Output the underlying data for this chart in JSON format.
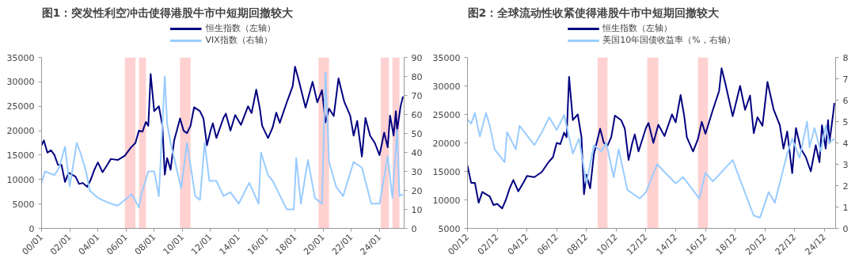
{
  "chart_data": [
    {
      "type": "line",
      "title": "图1：突发性利空冲击使得港股牛市中短期回撤较大",
      "legend": "top",
      "grid": false,
      "xlim": [
        "2000-01-01",
        "2025-10-01"
      ],
      "xticks": [
        {
          "value": "2000-01-01",
          "label": "00/01"
        },
        {
          "value": "2002-01-01",
          "label": "02/01"
        },
        {
          "value": "2004-01-01",
          "label": "04/01"
        },
        {
          "value": "2006-01-01",
          "label": "06/01"
        },
        {
          "value": "2008-01-01",
          "label": "08/01"
        },
        {
          "value": "2010-01-01",
          "label": "10/01"
        },
        {
          "value": "2012-01-01",
          "label": "12/01"
        },
        {
          "value": "2014-01-01",
          "label": "14/01"
        },
        {
          "value": "2016-01-01",
          "label": "16/01"
        },
        {
          "value": "2018-01-01",
          "label": "18/01"
        },
        {
          "value": "2020-01-01",
          "label": "20/01"
        },
        {
          "value": "2022-01-01",
          "label": "22/01"
        },
        {
          "value": "2024-01-01",
          "label": "24/01"
        }
      ],
      "ylim": [
        0,
        35000
      ],
      "yticks": [
        0,
        5000,
        10000,
        15000,
        20000,
        25000,
        30000,
        35000
      ],
      "y2lim": [
        0,
        90
      ],
      "y2ticks": [
        0,
        10,
        20,
        30,
        40,
        50,
        60,
        70,
        80,
        90
      ],
      "series": [
        {
          "name": "恒生指数（左轴）",
          "color": "#000080",
          "x": [
            "2000-01",
            "2000-03",
            "2000-06",
            "2000-09",
            "2000-12",
            "2001-03",
            "2001-06",
            "2001-09",
            "2001-12",
            "2002-03",
            "2002-06",
            "2002-09",
            "2002-12",
            "2003-04",
            "2003-07",
            "2003-10",
            "2004-01",
            "2004-05",
            "2004-09",
            "2004-12",
            "2005-06",
            "2005-12",
            "2006-05",
            "2006-09",
            "2006-12",
            "2007-03",
            "2007-06",
            "2007-08",
            "2007-10",
            "2008-01",
            "2008-05",
            "2008-08",
            "2008-10",
            "2008-12",
            "2009-03",
            "2009-06",
            "2009-11",
            "2010-02",
            "2010-05",
            "2010-08",
            "2010-11",
            "2011-04",
            "2011-07",
            "2011-10",
            "2012-01",
            "2012-03",
            "2012-06",
            "2012-12",
            "2013-02",
            "2013-06",
            "2013-10",
            "2014-03",
            "2014-09",
            "2014-12",
            "2015-04",
            "2015-07",
            "2015-09",
            "2016-02",
            "2016-06",
            "2016-09",
            "2016-12",
            "2017-06",
            "2017-11",
            "2018-01",
            "2018-04",
            "2018-10",
            "2019-04",
            "2019-08",
            "2019-12",
            "2020-03",
            "2020-06",
            "2020-10",
            "2021-02",
            "2021-07",
            "2021-12",
            "2022-03",
            "2022-06",
            "2022-10",
            "2023-01",
            "2023-05",
            "2023-09",
            "2024-01",
            "2024-05",
            "2024-08",
            "2024-10",
            "2025-01",
            "2025-03",
            "2025-04",
            "2025-07",
            "2025-09"
          ],
          "values": [
            17000,
            18000,
            15500,
            16000,
            15000,
            13000,
            13000,
            9500,
            11400,
            11000,
            10600,
            9100,
            9300,
            8500,
            10000,
            12000,
            13500,
            11500,
            13000,
            14200,
            14000,
            14900,
            16500,
            17500,
            20000,
            19800,
            21800,
            21000,
            31600,
            24000,
            25000,
            21000,
            11000,
            14400,
            12000,
            18000,
            22500,
            20000,
            19500,
            21000,
            24800,
            24000,
            22500,
            17000,
            20000,
            21500,
            18500,
            22600,
            23500,
            20000,
            23200,
            21200,
            25000,
            23600,
            28400,
            24600,
            21000,
            18500,
            20700,
            23700,
            21600,
            25800,
            29100,
            33100,
            30500,
            24700,
            30000,
            25800,
            28300,
            21700,
            24500,
            23000,
            30700,
            25900,
            23100,
            19000,
            22000,
            14700,
            22600,
            19000,
            17500,
            15000,
            19600,
            16600,
            23100,
            19000,
            24000,
            20000,
            25000,
            27000
          ]
        },
        {
          "name": "VIX指数（右轴）",
          "color": "#99ccff",
          "axis": "y2",
          "x": [
            "2000-01",
            "2000-04",
            "2000-12",
            "2001-04",
            "2001-09",
            "2002-01",
            "2002-07",
            "2002-10",
            "2003-03",
            "2003-06",
            "2004-01",
            "2004-12",
            "2005-06",
            "2006-06",
            "2006-12",
            "2007-02",
            "2007-08",
            "2008-01",
            "2008-05",
            "2008-10",
            "2008-12",
            "2009-03",
            "2009-12",
            "2010-05",
            "2010-12",
            "2011-04",
            "2011-08",
            "2011-12",
            "2012-06",
            "2012-12",
            "2013-06",
            "2014-01",
            "2014-10",
            "2015-06",
            "2015-08",
            "2016-02",
            "2016-06",
            "2017-06",
            "2017-12",
            "2018-02",
            "2018-06",
            "2018-12",
            "2019-06",
            "2019-12",
            "2020-03",
            "2020-06",
            "2020-12",
            "2021-06",
            "2022-03",
            "2022-10",
            "2023-06",
            "2024-01",
            "2024-08",
            "2024-12",
            "2025-04",
            "2025-06",
            "2025-09"
          ],
          "values": [
            24,
            30,
            28,
            32,
            43,
            22,
            45,
            40,
            30,
            20,
            16,
            13,
            12,
            18,
            11,
            18,
            30,
            30,
            17,
            80,
            55,
            45,
            21,
            45,
            17,
            15,
            45,
            25,
            25,
            17,
            19,
            13,
            24,
            13,
            40,
            28,
            25,
            10,
            10,
            37,
            13,
            36,
            16,
            13,
            82,
            35,
            22,
            17,
            35,
            32,
            13,
            13,
            38,
            16,
            52,
            17,
            18
          ]
        }
      ],
      "bands": [
        {
          "axis": "x",
          "from": "2005-12",
          "to": "2006-09",
          "color": "#ffb3b3"
        },
        {
          "axis": "x",
          "from": "2006-12",
          "to": "2007-06",
          "color": "#ffb3b3"
        },
        {
          "axis": "x",
          "from": "2009-11",
          "to": "2010-08",
          "color": "#ffb3b3"
        },
        {
          "axis": "x",
          "from": "2019-09",
          "to": "2020-06",
          "color": "#ffb3b3"
        },
        {
          "axis": "x",
          "from": "2024-02",
          "to": "2024-09",
          "color": "#ffb3b3"
        },
        {
          "axis": "x",
          "from": "2024-12",
          "to": "2025-06",
          "color": "#ffb3b3"
        }
      ]
    },
    {
      "type": "line",
      "title": "图2：全球流动性收紧使得港股牛市中短期回撤较大",
      "legend": "top",
      "grid": false,
      "xlim": [
        "2000-12-01",
        "2025-09-01"
      ],
      "xticks": [
        {
          "value": "2000-12-01",
          "label": "00/12"
        },
        {
          "value": "2002-12-01",
          "label": "02/12"
        },
        {
          "value": "2004-12-01",
          "label": "04/12"
        },
        {
          "value": "2006-12-01",
          "label": "06/12"
        },
        {
          "value": "2008-12-01",
          "label": "08/12"
        },
        {
          "value": "2010-12-01",
          "label": "10/12"
        },
        {
          "value": "2012-12-01",
          "label": "12/12"
        },
        {
          "value": "2014-12-01",
          "label": "14/12"
        },
        {
          "value": "2016-12-01",
          "label": "16/12"
        },
        {
          "value": "2018-12-01",
          "label": "18/12"
        },
        {
          "value": "2020-12-01",
          "label": "20/12"
        },
        {
          "value": "2022-12-01",
          "label": "22/12"
        },
        {
          "value": "2024-12-01",
          "label": "24/12"
        }
      ],
      "ylim": [
        5000,
        35000
      ],
      "yticks": [
        5000,
        10000,
        15000,
        20000,
        25000,
        30000,
        35000
      ],
      "y2lim": [
        0,
        8
      ],
      "y2ticks": [
        0,
        1,
        2,
        3,
        4,
        5,
        6,
        7,
        8
      ],
      "series": [
        {
          "name": "恒生指数（左轴）",
          "color": "#000080",
          "x": [
            "2000-12",
            "2001-03",
            "2001-06",
            "2001-09",
            "2001-12",
            "2002-03",
            "2002-06",
            "2002-09",
            "2002-12",
            "2003-04",
            "2003-07",
            "2003-10",
            "2004-01",
            "2004-05",
            "2004-09",
            "2004-12",
            "2005-06",
            "2005-12",
            "2006-05",
            "2006-09",
            "2006-12",
            "2007-03",
            "2007-06",
            "2007-08",
            "2007-10",
            "2008-01",
            "2008-05",
            "2008-08",
            "2008-10",
            "2008-12",
            "2009-03",
            "2009-06",
            "2009-11",
            "2010-02",
            "2010-05",
            "2010-08",
            "2010-11",
            "2011-04",
            "2011-07",
            "2011-10",
            "2012-01",
            "2012-03",
            "2012-06",
            "2012-12",
            "2013-02",
            "2013-06",
            "2013-10",
            "2014-03",
            "2014-09",
            "2014-12",
            "2015-04",
            "2015-07",
            "2015-09",
            "2016-02",
            "2016-06",
            "2016-09",
            "2016-12",
            "2017-06",
            "2017-11",
            "2018-01",
            "2018-04",
            "2018-10",
            "2019-04",
            "2019-08",
            "2019-12",
            "2020-03",
            "2020-06",
            "2020-10",
            "2021-02",
            "2021-07",
            "2021-12",
            "2022-03",
            "2022-06",
            "2022-10",
            "2023-01",
            "2023-05",
            "2023-09",
            "2024-01",
            "2024-05",
            "2024-08",
            "2024-10",
            "2025-01",
            "2025-03",
            "2025-04",
            "2025-07",
            "2025-08"
          ],
          "values": [
            16000,
            13000,
            13000,
            9500,
            11400,
            11000,
            10600,
            9100,
            9300,
            8500,
            10000,
            12000,
            13500,
            11500,
            13000,
            14200,
            14000,
            14900,
            16500,
            17500,
            20000,
            19800,
            21800,
            21000,
            31600,
            24000,
            25000,
            21000,
            11000,
            14400,
            12000,
            18000,
            22500,
            20000,
            19500,
            21000,
            24800,
            24000,
            22500,
            17000,
            20000,
            21500,
            18500,
            22600,
            23500,
            20000,
            23200,
            21200,
            25000,
            23600,
            28400,
            24600,
            21000,
            18500,
            20700,
            23700,
            21600,
            25800,
            29100,
            33100,
            30500,
            24700,
            30000,
            25800,
            28300,
            21700,
            24500,
            23000,
            30700,
            25900,
            23100,
            19000,
            22000,
            14700,
            22600,
            19000,
            17500,
            15000,
            19600,
            16600,
            23100,
            19000,
            24000,
            20000,
            25000,
            27000
          ]
        },
        {
          "name": "美国10年国债收益率（%，右轴）",
          "color": "#99ccff",
          "axis": "y2",
          "x": [
            "2000-12",
            "2001-03",
            "2001-06",
            "2001-10",
            "2002-03",
            "2002-06",
            "2002-10",
            "2003-06",
            "2003-08",
            "2004-03",
            "2004-06",
            "2005-06",
            "2005-12",
            "2006-06",
            "2006-12",
            "2007-06",
            "2008-01",
            "2008-06",
            "2008-12",
            "2009-06",
            "2009-12",
            "2010-04",
            "2010-10",
            "2011-02",
            "2011-09",
            "2012-07",
            "2012-12",
            "2013-09",
            "2014-12",
            "2015-06",
            "2016-07",
            "2016-12",
            "2017-06",
            "2018-10",
            "2019-09",
            "2020-03",
            "2020-08",
            "2021-03",
            "2021-08",
            "2022-06",
            "2022-10",
            "2023-04",
            "2023-10",
            "2023-12",
            "2024-04",
            "2024-09",
            "2025-01",
            "2025-04",
            "2025-08"
          ],
          "values": [
            5.1,
            4.9,
            5.4,
            4.3,
            5.4,
            4.8,
            3.7,
            3.1,
            4.5,
            3.7,
            4.8,
            3.9,
            4.5,
            5.2,
            4.6,
            5.3,
            3.5,
            4.2,
            2.1,
            3.9,
            3.6,
            4.0,
            2.4,
            3.7,
            1.8,
            1.4,
            1.7,
            3.0,
            2.1,
            2.4,
            1.4,
            2.6,
            2.2,
            3.2,
            1.5,
            0.6,
            0.5,
            1.7,
            1.2,
            3.5,
            4.2,
            3.3,
            5.0,
            3.8,
            4.7,
            3.6,
            4.8,
            4.0,
            4.2
          ]
        }
      ],
      "bands": [
        {
          "axis": "x",
          "from": "2009-09",
          "to": "2010-05",
          "color": "#ffb3b3"
        },
        {
          "axis": "x",
          "from": "2013-01",
          "to": "2013-10",
          "color": "#ffb3b3"
        },
        {
          "axis": "x",
          "from": "2016-06",
          "to": "2017-02",
          "color": "#ffb3b3"
        }
      ]
    }
  ]
}
